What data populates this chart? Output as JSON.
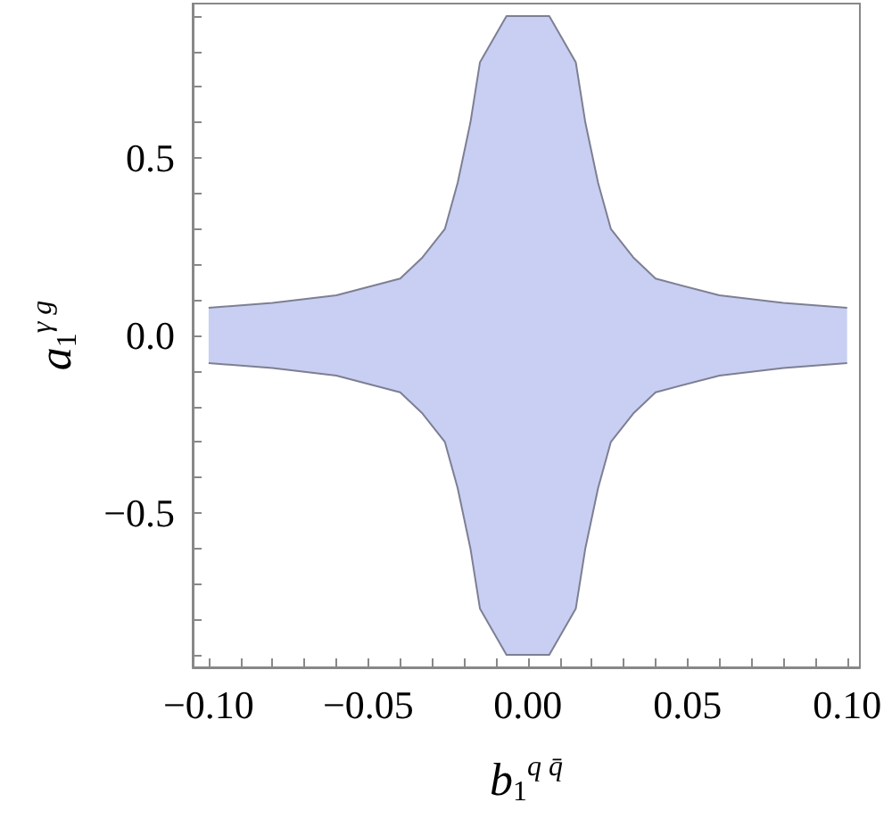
{
  "chart_data": {
    "type": "area",
    "xlabel": "b$_{1}$$^{q q̄}$",
    "ylabel": "a$_{1}$$^{γ g}$",
    "series": [
      {
        "color": "#c8cff2",
        "x": [
          -0.1,
          -0.08,
          -0.06,
          -0.04,
          -0.033,
          -0.026,
          -0.022,
          -0.018,
          -0.015,
          -0.0067,
          0.0067,
          0.015,
          0.018,
          0.022,
          0.026,
          0.033,
          0.04,
          0.06,
          0.08,
          0.1
        ],
        "values": [
          0.078,
          0.092,
          0.113,
          0.16,
          0.22,
          0.3,
          0.43,
          0.6,
          0.77,
          0.9,
          0.9,
          0.77,
          0.6,
          0.43,
          0.3,
          0.22,
          0.16,
          0.113,
          0.092,
          0.078
        ]
      },
      {
        "color": "#c8cff2",
        "x": [
          -0.1,
          -0.08,
          -0.06,
          -0.04,
          -0.033,
          -0.026,
          -0.022,
          -0.018,
          -0.015,
          -0.0067,
          0.0067,
          0.015,
          0.018,
          0.022,
          0.026,
          0.033,
          0.04,
          0.06,
          0.08,
          0.1
        ],
        "values": [
          -0.078,
          -0.092,
          -0.113,
          -0.16,
          -0.22,
          -0.3,
          -0.43,
          -0.6,
          -0.77,
          -0.9,
          -0.9,
          -0.77,
          -0.6,
          -0.43,
          -0.3,
          -0.22,
          -0.16,
          -0.113,
          -0.092,
          -0.078
        ]
      }
    ],
    "xlim": [
      -0.105,
      0.104
    ],
    "ylim": [
      -0.935,
      0.935
    ],
    "xticks": [
      {
        "value": -0.1,
        "label": "−0.10"
      },
      {
        "value": -0.09,
        "label": null
      },
      {
        "value": -0.08,
        "label": null
      },
      {
        "value": -0.07,
        "label": null
      },
      {
        "value": -0.06,
        "label": null
      },
      {
        "value": -0.05,
        "label": "−0.05"
      },
      {
        "value": -0.04,
        "label": null
      },
      {
        "value": -0.03,
        "label": null
      },
      {
        "value": -0.02,
        "label": null
      },
      {
        "value": -0.01,
        "label": null
      },
      {
        "value": 0,
        "label": "0.00"
      },
      {
        "value": 0.01,
        "label": null
      },
      {
        "value": 0.02,
        "label": null
      },
      {
        "value": 0.03,
        "label": null
      },
      {
        "value": 0.04,
        "label": null
      },
      {
        "value": 0.05,
        "label": "0.05"
      },
      {
        "value": 0.06,
        "label": null
      },
      {
        "value": 0.07,
        "label": null
      },
      {
        "value": 0.08,
        "label": null
      },
      {
        "value": 0.09,
        "label": null
      },
      {
        "value": 0.1,
        "label": "0.10"
      }
    ],
    "yticks": [
      {
        "value": -0.9,
        "label": null
      },
      {
        "value": -0.8,
        "label": null
      },
      {
        "value": -0.7,
        "label": null
      },
      {
        "value": -0.6,
        "label": null
      },
      {
        "value": -0.5,
        "label": "−0.5"
      },
      {
        "value": -0.4,
        "label": null
      },
      {
        "value": -0.3,
        "label": null
      },
      {
        "value": -0.2,
        "label": null
      },
      {
        "value": -0.1,
        "label": null
      },
      {
        "value": 0,
        "label": "0.0"
      },
      {
        "value": 0.1,
        "label": null
      },
      {
        "value": 0.2,
        "label": null
      },
      {
        "value": 0.3,
        "label": null
      },
      {
        "value": 0.4,
        "label": null
      },
      {
        "value": 0.5,
        "label": "0.5"
      },
      {
        "value": 0.6,
        "label": null
      },
      {
        "value": 0.7,
        "label": null
      },
      {
        "value": 0.8,
        "label": null
      },
      {
        "value": 0.9,
        "label": null
      }
    ],
    "grid": false
  }
}
